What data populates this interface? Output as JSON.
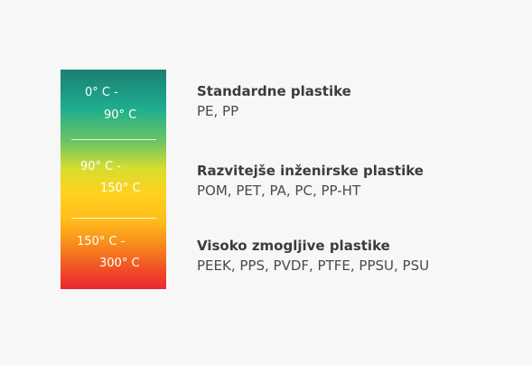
{
  "bands": [
    {
      "range_start": "0° C -",
      "range_end": "90° C",
      "title": "Standardne plastike",
      "materials": "PE, PP"
    },
    {
      "range_start": "90° C -",
      "range_end": "150° C",
      "title": "Razvitejše inženirske plastike",
      "materials": "POM, PET, PA, PC, PP-HT"
    },
    {
      "range_start": "150° C -",
      "range_end": "300° C",
      "title": "Visoko zmogljive plastike",
      "materials": "PEEK, PPS, PVDF, PTFE, PPSU, PSU"
    }
  ],
  "colors": {
    "gradient_top": "#1a7f73",
    "gradient_middle": "#ffd21f",
    "gradient_bottom": "#eb2731",
    "title_text": "#3c3c3c",
    "body_text": "#4a4a4a",
    "background": "#f7f7f7"
  }
}
